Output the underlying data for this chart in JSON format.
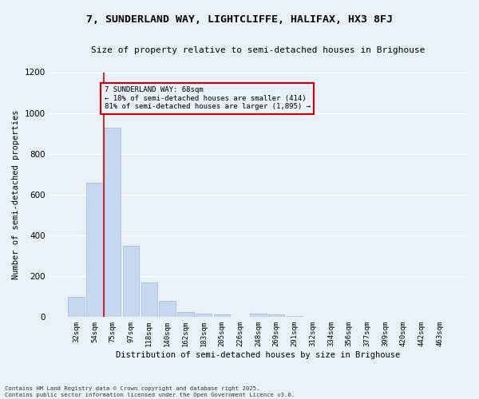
{
  "title1": "7, SUNDERLAND WAY, LIGHTCLIFFE, HALIFAX, HX3 8FJ",
  "title2": "Size of property relative to semi-detached houses in Brighouse",
  "xlabel": "Distribution of semi-detached houses by size in Brighouse",
  "ylabel": "Number of semi-detached properties",
  "categories": [
    "32sqm",
    "54sqm",
    "75sqm",
    "97sqm",
    "118sqm",
    "140sqm",
    "162sqm",
    "183sqm",
    "205sqm",
    "226sqm",
    "248sqm",
    "269sqm",
    "291sqm",
    "312sqm",
    "334sqm",
    "356sqm",
    "377sqm",
    "399sqm",
    "420sqm",
    "442sqm",
    "463sqm"
  ],
  "values": [
    100,
    660,
    930,
    350,
    170,
    78,
    25,
    18,
    12,
    0,
    15,
    13,
    5,
    0,
    0,
    0,
    0,
    0,
    0,
    0,
    0
  ],
  "bar_color": "#c5d8f0",
  "bar_edge_color": "#a0b8d8",
  "bg_color": "#eaf0f8",
  "grid_color": "#ffffff",
  "vline_x": 1.5,
  "vline_color": "#cc0000",
  "annotation_title": "7 SUNDERLAND WAY: 68sqm",
  "annotation_line2": "← 18% of semi-detached houses are smaller (414)",
  "annotation_line3": "81% of semi-detached houses are larger (1,895) →",
  "annotation_box_color": "#cc0000",
  "ylim": [
    0,
    1200
  ],
  "yticks": [
    0,
    200,
    400,
    600,
    800,
    1000,
    1200
  ],
  "footnote1": "Contains HM Land Registry data © Crown copyright and database right 2025.",
  "footnote2": "Contains public sector information licensed under the Open Government Licence v3.0."
}
